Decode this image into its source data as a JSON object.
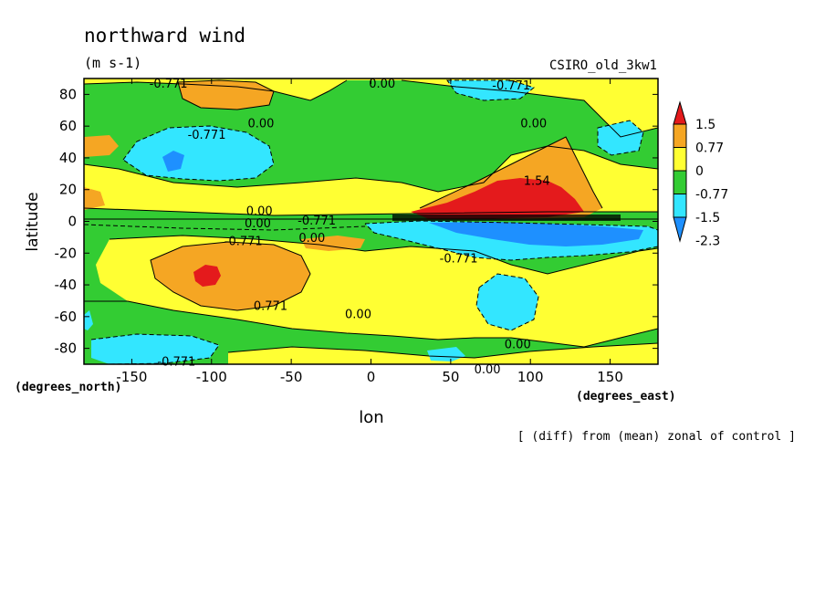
{
  "chart_data": {
    "type": "heatmap",
    "title": "northward wind",
    "units": "(m s-1)",
    "model": "CSIRO_old_3kw1",
    "xlabel": "lon",
    "ylabel": "latitude",
    "x_units": "(degrees_east)",
    "y_units": "(degrees_north)",
    "footnote": "[ (diff) from (mean) zonal of control ]",
    "xlim": [
      -180,
      180
    ],
    "ylim": [
      -90,
      90
    ],
    "x_ticks": [
      -150,
      -100,
      -50,
      0,
      50,
      100,
      150
    ],
    "y_ticks": [
      80,
      60,
      40,
      20,
      0,
      -20,
      -40,
      -60,
      -80
    ],
    "x_tick_labels": [
      "-150",
      "-100",
      "-50",
      "0",
      "50",
      "100",
      "150"
    ],
    "y_tick_labels": [
      "80",
      "60",
      "40",
      "20",
      "0",
      "-20",
      "-40",
      "-60",
      "-80"
    ],
    "colorbar": {
      "labels": [
        "1.5",
        "0.77",
        "0",
        "-0.77",
        "-1.5",
        "-2.3"
      ],
      "colors": [
        "#e41a1c",
        "#f5a623",
        "#ffff33",
        "#33cc33",
        "#33e6ff",
        "#1e90ff"
      ]
    },
    "contour_labels": [
      {
        "text": "-0.771",
        "lon": -127,
        "lat": 87
      },
      {
        "text": "0.00",
        "lon": 7,
        "lat": 87
      },
      {
        "text": "-0.771",
        "lon": 88,
        "lat": 86
      },
      {
        "text": "0.00",
        "lon": -69,
        "lat": 62
      },
      {
        "text": "0.00",
        "lon": 102,
        "lat": 62
      },
      {
        "text": "-0.771",
        "lon": -103,
        "lat": 55
      },
      {
        "text": "1.54",
        "lon": 104,
        "lat": 26
      },
      {
        "text": "0.00",
        "lon": -70,
        "lat": 7
      },
      {
        "text": "-0.771",
        "lon": -34,
        "lat": 1
      },
      {
        "text": "0.00",
        "lon": -71,
        "lat": -1
      },
      {
        "text": "-0.771",
        "lon": -80,
        "lat": -12
      },
      {
        "text": "0.00",
        "lon": -37,
        "lat": -10
      },
      {
        "text": "-0.771",
        "lon": 55,
        "lat": -23
      },
      {
        "text": "0.771",
        "lon": -63,
        "lat": -53
      },
      {
        "text": "0.00",
        "lon": -8,
        "lat": -58
      },
      {
        "text": "0.00",
        "lon": 92,
        "lat": -77
      },
      {
        "text": "-0.771",
        "lon": -122,
        "lat": -88
      },
      {
        "text": "0.00",
        "lon": 73,
        "lat": -93
      }
    ]
  }
}
